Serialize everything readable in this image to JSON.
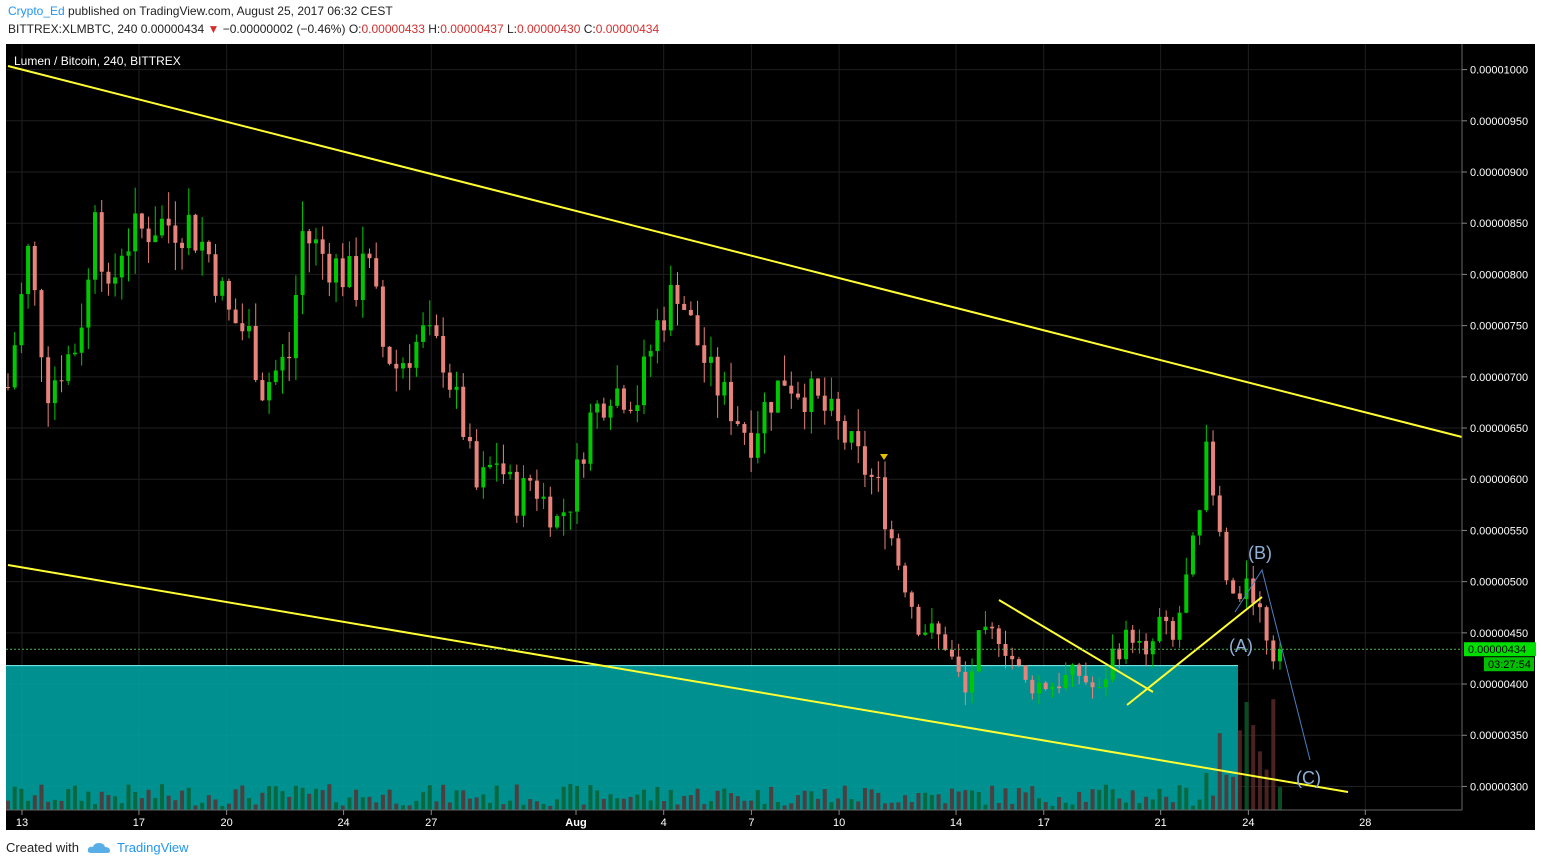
{
  "header": {
    "author": "Crypto_Ed",
    "published_text": "published on TradingView.com, August 25, 2017 06:32 CEST",
    "symbol": "BITTREX:XLMBTC, 240",
    "last": "0.00000434",
    "change_arrow": "▼",
    "change": "−0.00000002 (−0.46%)",
    "o_label": "O:",
    "o": "0.00000433",
    "h_label": "H:",
    "h": "0.00000437",
    "l_label": "L:",
    "l": "0.00000430",
    "c_label": "C:",
    "c": "0.00000434"
  },
  "chart_legend": "Lumen / Bitcoin, 240, BITTREX",
  "chart_data": {
    "type": "candlestick",
    "title": "Lumen / Bitcoin, 240, BITTREX",
    "x_ticks": [
      "13",
      "17",
      "20",
      "24",
      "27",
      "Aug",
      "4",
      "7",
      "10",
      "14",
      "17",
      "21",
      "24",
      "28"
    ],
    "y_ticks": [
      "0.00001000",
      "0.00000950",
      "0.00000900",
      "0.00000850",
      "0.00000800",
      "0.00000750",
      "0.00000700",
      "0.00000650",
      "0.00000600",
      "0.00000550",
      "0.00000500",
      "0.00000450",
      "0.00000400",
      "0.00000350",
      "0.00000300"
    ],
    "ylim": [
      2.77e-06,
      1.025e-05
    ],
    "last_price": 4.34e-06,
    "last_price_label": "0.00000434",
    "countdown": "03:27:54",
    "ohlc_path_keypoints": [
      [
        0,
        6.9e-06
      ],
      [
        3,
        8.2e-06
      ],
      [
        6,
        6.9e-06
      ],
      [
        10,
        7.3e-06
      ],
      [
        12,
        7.9e-06
      ],
      [
        13,
        8.8e-06
      ],
      [
        15,
        7.7e-06
      ],
      [
        17,
        8.3e-06
      ],
      [
        22,
        8.5e-06
      ],
      [
        27,
        8.5e-06
      ],
      [
        30,
        8.2e-06
      ],
      [
        33,
        7.6e-06
      ],
      [
        36,
        7.4e-06
      ],
      [
        38,
        6.9e-06
      ],
      [
        42,
        7.2e-06
      ],
      [
        44,
        8.4e-06
      ],
      [
        47,
        8.2e-06
      ],
      [
        52,
        7.9e-06
      ],
      [
        53,
        8.3e-06
      ],
      [
        55,
        7.7e-06
      ],
      [
        56,
        7.3e-06
      ],
      [
        58,
        7.1e-06
      ],
      [
        62,
        7.4e-06
      ],
      [
        65,
        7.2e-06
      ],
      [
        68,
        6.5e-06
      ],
      [
        70,
        5.9e-06
      ],
      [
        73,
        6.2e-06
      ],
      [
        76,
        5.8e-06
      ],
      [
        78,
        6e-06
      ],
      [
        82,
        5.6e-06
      ],
      [
        84,
        5.8e-06
      ],
      [
        87,
        6.6e-06
      ],
      [
        90,
        6.9e-06
      ],
      [
        94,
        6.8e-06
      ],
      [
        97,
        7.5e-06
      ],
      [
        100,
        7.9e-06
      ],
      [
        102,
        7.5e-06
      ],
      [
        105,
        7e-06
      ],
      [
        108,
        6.7e-06
      ],
      [
        111,
        6.4e-06
      ],
      [
        113,
        6.7e-06
      ],
      [
        116,
        7e-06
      ],
      [
        120,
        6.8e-06
      ],
      [
        123,
        6.6e-06
      ],
      [
        126,
        6.3e-06
      ],
      [
        130,
        5.9e-06
      ],
      [
        133,
        5.2e-06
      ],
      [
        136,
        4.6e-06
      ],
      [
        140,
        4.4e-06
      ],
      [
        143,
        3.9e-06
      ],
      [
        145,
        4.4e-06
      ],
      [
        148,
        4.5e-06
      ],
      [
        152,
        4e-06
      ],
      [
        156,
        4e-06
      ],
      [
        160,
        4.1e-06
      ],
      [
        163,
        3.9e-06
      ],
      [
        165,
        4.3e-06
      ],
      [
        168,
        4.5e-06
      ],
      [
        170,
        4.2e-06
      ],
      [
        172,
        4.6e-06
      ],
      [
        174,
        4.4e-06
      ],
      [
        176,
        5e-06
      ],
      [
        178,
        5.6e-06
      ],
      [
        179,
        6.2e-06
      ],
      [
        180,
        5.8e-06
      ],
      [
        182,
        5e-06
      ],
      [
        184,
        4.7e-06
      ],
      [
        185,
        5.1e-06
      ],
      [
        186,
        4.9e-06
      ],
      [
        188,
        4.5e-06
      ],
      [
        189,
        4.3e-06
      ],
      [
        190,
        4.34e-06
      ]
    ],
    "annotations": {
      "wave_a": "(A)",
      "wave_b": "(B)",
      "wave_c": "(C)"
    },
    "drawings": [
      {
        "type": "trendline",
        "color": "#ffff33",
        "desc": "upper channel"
      },
      {
        "type": "trendline",
        "color": "#ffff33",
        "desc": "lower channel"
      },
      {
        "type": "rectangle",
        "color": "#00b3b3",
        "desc": "support zone",
        "bottom": 2.95e-06,
        "top": 4.18e-06
      }
    ],
    "colors": {
      "background": "#000000",
      "up": "#00c800",
      "down": "#e8837b",
      "trendline": "#ffff33",
      "zone": "#00a0a0",
      "price_line": "#4caf50",
      "wave_labels": "#8fb0d8"
    },
    "grid": true
  },
  "footer": {
    "created_with": "Created with",
    "brand": "TradingView"
  }
}
